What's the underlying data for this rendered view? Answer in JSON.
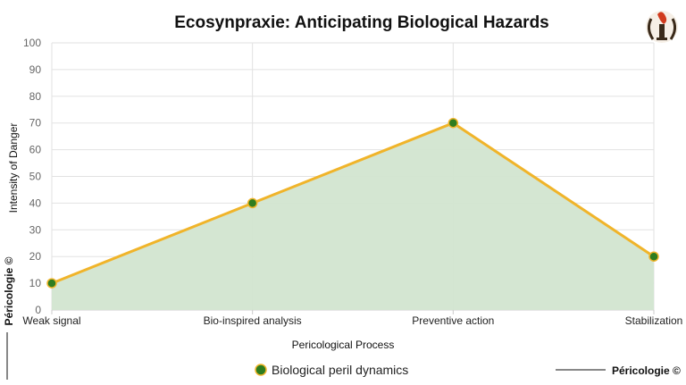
{
  "chart_data": {
    "type": "area",
    "title": "Ecosynpraxie: Anticipating Biological Hazards",
    "xlabel": "Pericological Process",
    "ylabel": "Intensity of Danger",
    "categories": [
      "Weak signal",
      "Bio-inspired analysis",
      "Preventive action",
      "Stabilization"
    ],
    "series": [
      {
        "name": "Biological peril dynamics",
        "values": [
          10,
          40,
          70,
          20
        ]
      }
    ],
    "ylim": [
      0,
      100
    ],
    "yticks": [
      "0",
      "10",
      "20",
      "30",
      "40",
      "50",
      "60",
      "70",
      "80",
      "90",
      "100"
    ],
    "grid": true,
    "legend": "bottom-center",
    "colors": {
      "line": "#f0b42a",
      "fill": "#d2e5d0",
      "point": "#2e7d1f",
      "grid": "#e2e2e2"
    }
  },
  "branding": {
    "watermark_left": "Péricologie ©",
    "watermark_bottom": "Péricologie ©",
    "logo_icon": "torch-laurel-logo-icon"
  }
}
